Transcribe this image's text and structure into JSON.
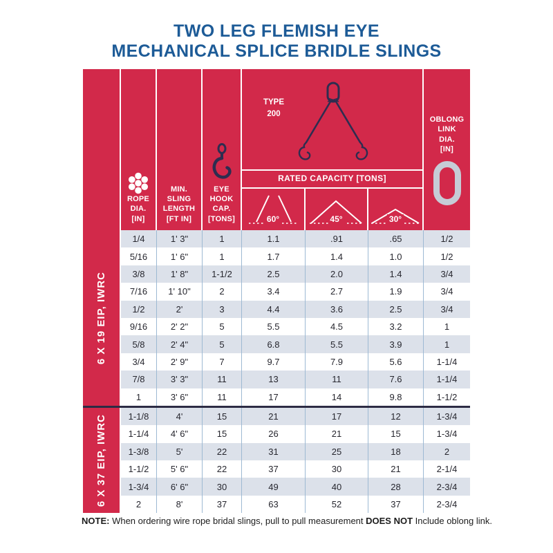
{
  "title": {
    "line1": "TWO LEG FLEMISH EYE",
    "line2": "MECHANICAL SPLICE BRIDLE SLINGS"
  },
  "header": {
    "rope_label": "ROPE\nDIA.\n[IN]",
    "sling_label": "MIN.\nSLING\nLENGTH\n[FT IN]",
    "hook_label": "EYE\nHOOK\nCAP.\n[TONS]",
    "type_label": "TYPE\n200",
    "rated_capacity_label": "RATED CAPACITY [TONS]",
    "angles": [
      "60°",
      "45°",
      "30°"
    ],
    "oblong_label": "OBLONG\nLINK\nDIA.\n[IN]",
    "icons": [
      "rope-cross-section-icon",
      "eye-hook-icon",
      "two-leg-sling-illustration",
      "angle-60-icon",
      "angle-45-icon",
      "angle-30-icon",
      "oblong-link-icon"
    ]
  },
  "columns": [
    "ROPE DIA. [IN]",
    "MIN. SLING LENGTH [FT IN]",
    "EYE HOOK CAP. [TONS]",
    "RATED CAPACITY 60° [TONS]",
    "RATED CAPACITY 45° [TONS]",
    "RATED CAPACITY 30° [TONS]",
    "OBLONG LINK DIA. [IN]"
  ],
  "groups": [
    {
      "label": "6 X 19 EIP, IWRC",
      "rows": [
        [
          "1/4",
          "1' 3\"",
          "1",
          "1.1",
          ".91",
          ".65",
          "1/2"
        ],
        [
          "5/16",
          "1' 6\"",
          "1",
          "1.7",
          "1.4",
          "1.0",
          "1/2"
        ],
        [
          "3/8",
          "1' 8\"",
          "1-1/2",
          "2.5",
          "2.0",
          "1.4",
          "3/4"
        ],
        [
          "7/16",
          "1' 10\"",
          "2",
          "3.4",
          "2.7",
          "1.9",
          "3/4"
        ],
        [
          "1/2",
          "2'",
          "3",
          "4.4",
          "3.6",
          "2.5",
          "3/4"
        ],
        [
          "9/16",
          "2' 2\"",
          "5",
          "5.5",
          "4.5",
          "3.2",
          "1"
        ],
        [
          "5/8",
          "2' 4\"",
          "5",
          "6.8",
          "5.5",
          "3.9",
          "1"
        ],
        [
          "3/4",
          "2' 9\"",
          "7",
          "9.7",
          "7.9",
          "5.6",
          "1-1/4"
        ],
        [
          "7/8",
          "3' 3\"",
          "11",
          "13",
          "11",
          "7.6",
          "1-1/4"
        ],
        [
          "1",
          "3' 6\"",
          "11",
          "17",
          "14",
          "9.8",
          "1-1/2"
        ]
      ]
    },
    {
      "label": "6 X 37 EIP, IWRC",
      "rows": [
        [
          "1-1/8",
          "4'",
          "15",
          "21",
          "17",
          "12",
          "1-3/4"
        ],
        [
          "1-1/4",
          "4' 6\"",
          "15",
          "26",
          "21",
          "15",
          "1-3/4"
        ],
        [
          "1-3/8",
          "5'",
          "22",
          "31",
          "25",
          "18",
          "2"
        ],
        [
          "1-1/2",
          "5' 6\"",
          "22",
          "37",
          "30",
          "21",
          "2-1/4"
        ],
        [
          "1-3/4",
          "6' 6\"",
          "30",
          "49",
          "40",
          "28",
          "2-3/4"
        ],
        [
          "2",
          "8'",
          "37",
          "63",
          "52",
          "37",
          "2-3/4"
        ]
      ]
    }
  ],
  "note": {
    "prefix": "NOTE:",
    "text1": " When ordering wire rope bridal slings, pull to pull measurement ",
    "bold": "DOES NOT",
    "text2": " Include oblong link."
  },
  "colors": {
    "brand_red": "#d2294a",
    "title_blue": "#1d5b97",
    "illustration_navy": "#2e2d50",
    "row_stripe": "#dce1ea",
    "grid_line_blue": "#9db9d3",
    "oblong_gray": "#c6ccd6",
    "group_separator": "#2c2b44"
  }
}
